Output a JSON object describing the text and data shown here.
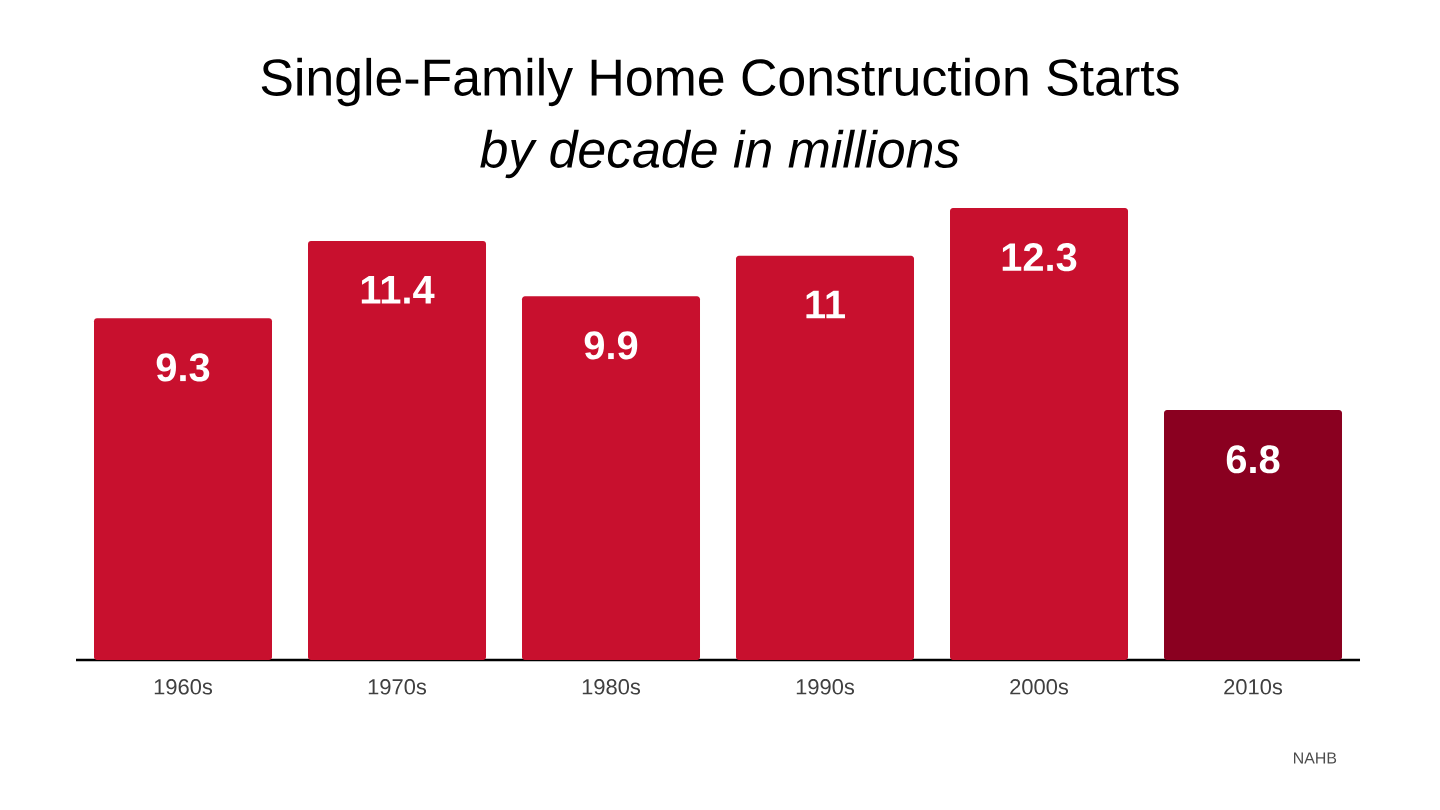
{
  "chart_data": {
    "type": "bar",
    "title": "Single-Family Home Construction Starts",
    "subtitle": "by decade in millions",
    "categories": [
      "1960s",
      "1970s",
      "1980s",
      "1990s",
      "2000s",
      "2010s"
    ],
    "values": [
      9.3,
      11.4,
      9.9,
      11,
      12.3,
      6.8
    ],
    "colors": [
      "#c8102e",
      "#c8102e",
      "#c8102e",
      "#c8102e",
      "#c8102e",
      "#8a0020"
    ],
    "data_labels": true,
    "annotations": [
      "NAHB"
    ]
  }
}
